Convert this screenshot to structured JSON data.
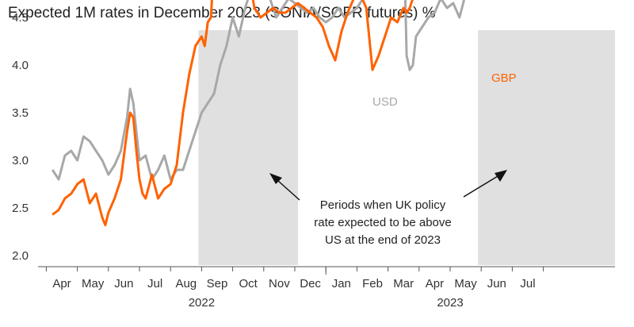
{
  "chart_data": {
    "type": "line",
    "title": "Expected 1M rates in December 2023 (SONIA/SOFR futures) %",
    "xlabel": "",
    "ylabel": "",
    "ylim": [
      2.0,
      6.5
    ],
    "yticks": [
      "2.0",
      "2.5",
      "3.0",
      "3.5",
      "4.0",
      "4.5",
      "5.0",
      "5.5",
      "6.0",
      "6.5"
    ],
    "month_labels": [
      "Apr",
      "May",
      "Jun",
      "Jul",
      "Aug",
      "Sep",
      "Oct",
      "Nov",
      "Dec",
      "Jan",
      "Feb",
      "Mar",
      "Apr",
      "May",
      "Jun",
      "Jul"
    ],
    "year_labels": [
      "2022",
      "2023"
    ],
    "shaded_periods": [
      {
        "start": "Aug",
        "end": "Oct"
      },
      {
        "start": "Mar",
        "end": "Jul"
      }
    ],
    "annotation": [
      "Periods when UK policy",
      "rate expected to be above",
      "US at the end of 2023"
    ],
    "colors": {
      "GBP": "#FF6200",
      "USD": "#A8A8A8",
      "shade": "#E0E0E0"
    },
    "series": [
      {
        "name": "GBP",
        "x": [
          -0.3,
          -0.1,
          0.1,
          0.3,
          0.5,
          0.7,
          0.9,
          1.1,
          1.3,
          1.4,
          1.5,
          1.7,
          1.9,
          2.1,
          2.2,
          2.3,
          2.4,
          2.5,
          2.6,
          2.7,
          2.9,
          3.1,
          3.3,
          3.5,
          3.7,
          3.9,
          4.1,
          4.3,
          4.5,
          4.6,
          4.7,
          4.8,
          4.9,
          5.0,
          5.1,
          5.3,
          5.4,
          5.5,
          5.6,
          5.7,
          5.8,
          5.9,
          6.0,
          6.1,
          6.2,
          6.4,
          6.6,
          6.8,
          7.0,
          7.2,
          7.4,
          7.6,
          7.8,
          8.0,
          8.2,
          8.4,
          8.6,
          8.8,
          9.0,
          9.2,
          9.4,
          9.6,
          9.8,
          10.0,
          10.2,
          10.4,
          10.6,
          10.8,
          11.0,
          11.1,
          11.2,
          11.3,
          11.4,
          11.5,
          11.6,
          11.8,
          12.0,
          12.2,
          12.4,
          12.6,
          12.8,
          13.0,
          13.2,
          13.4,
          13.6,
          13.8,
          14.0,
          14.2,
          14.4,
          14.6,
          14.8,
          15.0,
          15.2,
          15.4
        ],
        "values": [
          2.43,
          2.48,
          2.6,
          2.65,
          2.75,
          2.8,
          2.55,
          2.65,
          2.4,
          2.32,
          2.45,
          2.6,
          2.8,
          3.3,
          3.5,
          3.45,
          3.1,
          2.8,
          2.65,
          2.6,
          2.85,
          2.6,
          2.7,
          2.75,
          2.95,
          3.5,
          3.9,
          4.2,
          4.3,
          4.2,
          4.45,
          4.5,
          5.1,
          6.05,
          5.7,
          5.4,
          5.9,
          5.6,
          5.3,
          5.1,
          4.9,
          4.85,
          4.7,
          4.8,
          4.6,
          4.5,
          4.55,
          4.6,
          4.55,
          4.55,
          4.6,
          4.65,
          4.6,
          4.55,
          4.5,
          4.4,
          4.2,
          4.05,
          4.35,
          4.55,
          4.7,
          4.75,
          4.6,
          3.95,
          4.1,
          4.3,
          4.5,
          4.45,
          4.6,
          4.55,
          4.6,
          4.7,
          4.75,
          4.85,
          4.8,
          4.9,
          4.9,
          5.1,
          5.45,
          5.5,
          5.45,
          5.75,
          5.8,
          6.0,
          6.05,
          6.1,
          6.2,
          6.1,
          5.95,
          5.95,
          5.8,
          5.75,
          5.7,
          5.65
        ]
      },
      {
        "name": "USD",
        "x": [
          -0.3,
          -0.1,
          0.1,
          0.3,
          0.5,
          0.7,
          0.9,
          1.1,
          1.3,
          1.5,
          1.7,
          1.9,
          2.1,
          2.2,
          2.3,
          2.4,
          2.5,
          2.7,
          2.9,
          3.1,
          3.3,
          3.5,
          3.7,
          3.9,
          4.1,
          4.3,
          4.5,
          4.7,
          4.9,
          5.1,
          5.3,
          5.5,
          5.7,
          5.9,
          6.1,
          6.3,
          6.5,
          6.7,
          6.9,
          7.1,
          7.3,
          7.5,
          7.7,
          7.9,
          8.1,
          8.3,
          8.5,
          8.7,
          8.9,
          9.1,
          9.3,
          9.5,
          9.7,
          9.9,
          10.1,
          10.3,
          10.5,
          10.7,
          10.9,
          11.0,
          11.1,
          11.2,
          11.3,
          11.4,
          11.6,
          11.8,
          12.0,
          12.2,
          12.4,
          12.6,
          12.8,
          13.0,
          13.2,
          13.4,
          13.6,
          13.8,
          14.0,
          14.2,
          14.4,
          14.6,
          14.8,
          15.0,
          15.2,
          15.4
        ],
        "values": [
          2.9,
          2.8,
          3.05,
          3.1,
          3.0,
          3.25,
          3.2,
          3.1,
          3.0,
          2.85,
          2.95,
          3.1,
          3.45,
          3.75,
          3.6,
          3.3,
          3.0,
          3.05,
          2.8,
          2.9,
          3.05,
          2.8,
          2.9,
          2.9,
          3.1,
          3.3,
          3.5,
          3.6,
          3.7,
          4.0,
          4.2,
          4.5,
          4.3,
          4.6,
          4.8,
          5.0,
          4.9,
          4.7,
          4.5,
          4.6,
          4.7,
          4.65,
          4.6,
          4.55,
          4.6,
          4.5,
          4.45,
          4.5,
          4.6,
          4.5,
          4.55,
          4.6,
          4.7,
          4.8,
          5.0,
          5.2,
          5.3,
          5.5,
          5.6,
          5.5,
          4.1,
          3.95,
          4.0,
          4.3,
          4.4,
          4.5,
          4.55,
          4.7,
          4.6,
          4.65,
          4.5,
          4.75,
          4.9,
          5.0,
          5.1,
          5.2,
          5.3,
          5.3,
          5.35,
          5.4,
          5.35,
          5.4,
          5.38,
          5.4
        ]
      }
    ]
  }
}
